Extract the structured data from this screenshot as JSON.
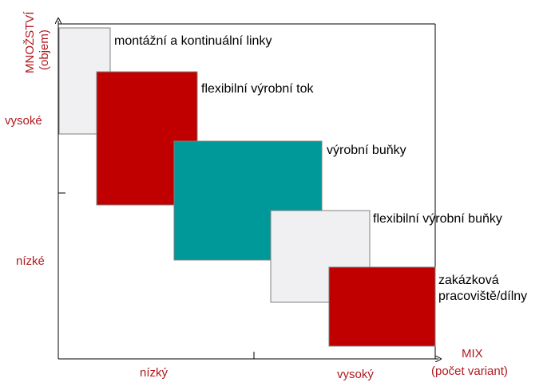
{
  "y_axis": {
    "label_lines": [
      "MNOŽSTVÍ",
      "(objem)"
    ],
    "high": "vysoké",
    "low": "nízké"
  },
  "x_axis": {
    "label_lines": [
      "MIX",
      "(počet variant)"
    ],
    "low": "nízký",
    "high": "vysoký"
  },
  "boxes": [
    {
      "label_lines": [
        "montážní a kontinuální linky"
      ]
    },
    {
      "label_lines": [
        "flexibilní výrobní tok"
      ]
    },
    {
      "label_lines": [
        "výrobní buňky"
      ]
    },
    {
      "label_lines": [
        "flexibilní výrobní buňky"
      ]
    },
    {
      "label_lines": [
        "zakázková",
        "pracoviště/dílny"
      ]
    }
  ]
}
